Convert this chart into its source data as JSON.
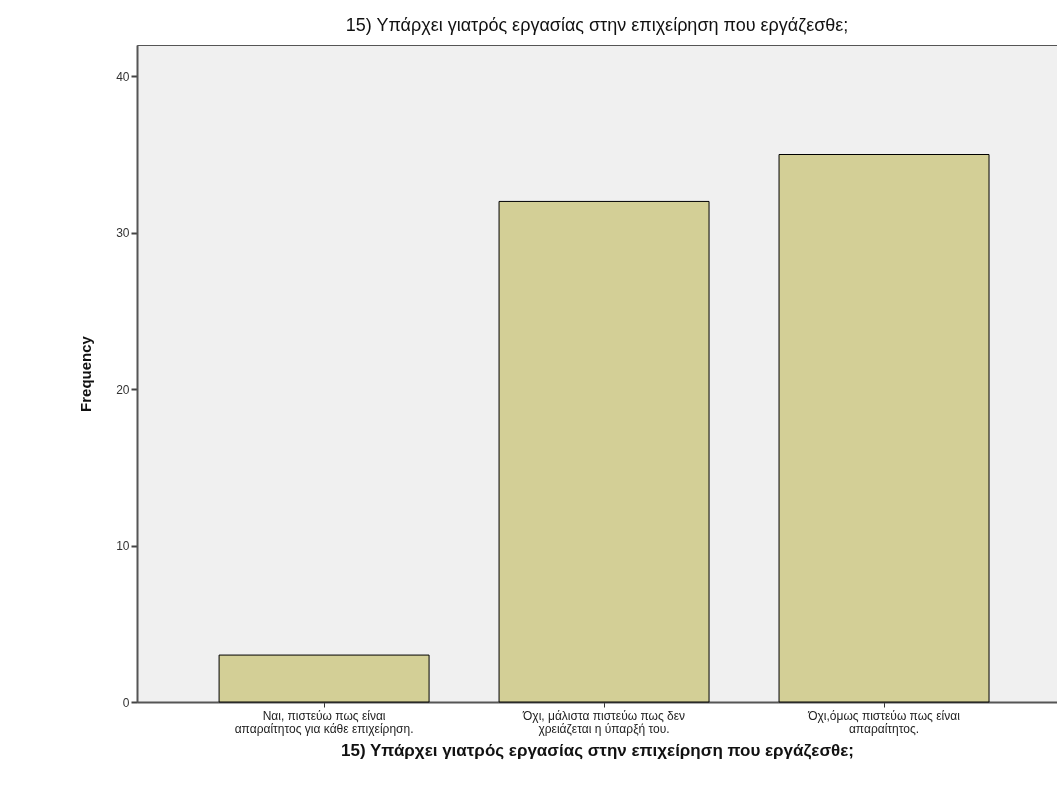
{
  "chart_data": {
    "type": "bar",
    "title": "15) Υπάρχει γιατρός εργασίας στην επιχείρηση που εργάζεσθε;",
    "xlabel": "15) Υπάρχει γιατρός εργασίας στην επιχείρηση που εργάζεσθε;",
    "ylabel": "Frequency",
    "categories": [
      "Ναι, πιστεύω πως είναι απαραίτητος για κάθε επιχείρηση.",
      "Όχι, μάλιστα πιστεύω πως δεν χρειάζεται η ύπαρξή του.",
      "Όχι,όμως πιστεύω πως είναι απαραίτητος."
    ],
    "values": [
      3,
      32,
      35
    ],
    "color": "#d3cf96",
    "ylim": [
      0,
      42
    ],
    "yticks": [
      0,
      10,
      20,
      30,
      40
    ]
  }
}
